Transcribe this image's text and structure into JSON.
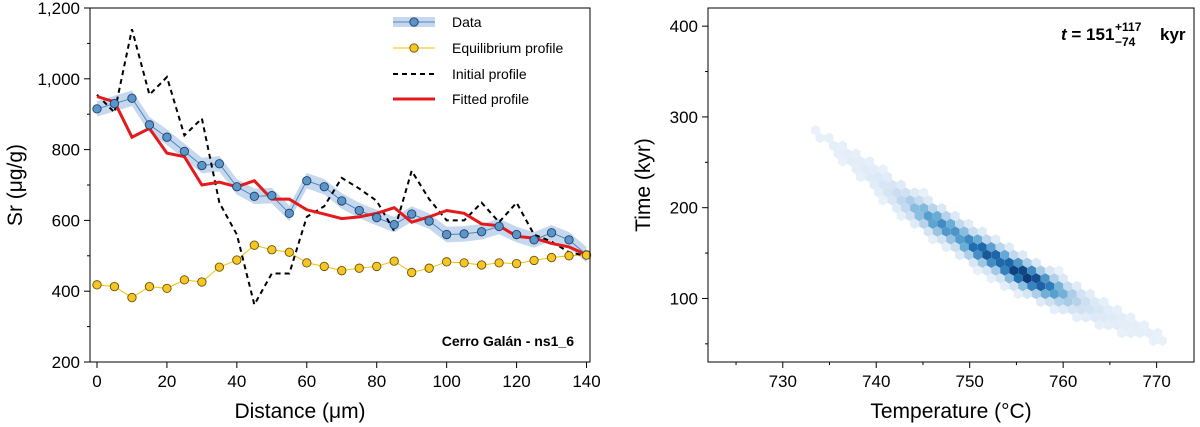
{
  "chart_data": [
    {
      "type": "line",
      "xlabel": "Distance (μm)",
      "ylabel": "Sr (μg/g)",
      "xlim": [
        -2,
        141
      ],
      "ylim": [
        200,
        1200
      ],
      "xticks": [
        0,
        20,
        40,
        60,
        80,
        100,
        120,
        140
      ],
      "xtick_labels": [
        "0",
        "20",
        "40",
        "60",
        "80",
        "100",
        "120",
        "140"
      ],
      "yticks": [
        200,
        400,
        600,
        800,
        1000,
        1200
      ],
      "ytick_labels": [
        "200",
        "400",
        "600",
        "800",
        "1,000",
        "1,200"
      ],
      "annotation": "Cerro Galán - ns1_6",
      "legend_position": "top-right",
      "grid": false,
      "series": [
        {
          "name": "Data",
          "color": "#4f87bf",
          "band_color": "#c6d8ee",
          "x": [
            0,
            5,
            10,
            15,
            20,
            25,
            30,
            35,
            40,
            45,
            50,
            55,
            60,
            65,
            70,
            75,
            80,
            85,
            90,
            95,
            100,
            105,
            110,
            115,
            120,
            125,
            130,
            135,
            140
          ],
          "y": [
            915,
            930,
            945,
            870,
            835,
            795,
            755,
            760,
            695,
            668,
            670,
            620,
            712,
            695,
            655,
            628,
            608,
            588,
            618,
            598,
            560,
            562,
            568,
            583,
            560,
            545,
            565,
            545,
            503
          ],
          "band": 22
        },
        {
          "name": "Equilibrium profile",
          "color": "#f2c100",
          "x": [
            0,
            5,
            10,
            15,
            20,
            25,
            30,
            35,
            40,
            45,
            50,
            55,
            60,
            65,
            70,
            75,
            80,
            85,
            90,
            95,
            100,
            105,
            110,
            115,
            120,
            125,
            130,
            135,
            140
          ],
          "y": [
            418,
            413,
            382,
            413,
            408,
            432,
            426,
            468,
            488,
            530,
            517,
            510,
            480,
            470,
            458,
            465,
            470,
            485,
            453,
            465,
            483,
            480,
            474,
            480,
            478,
            487,
            495,
            500,
            502
          ]
        },
        {
          "name": "Initial profile",
          "color": "#000000",
          "x": [
            0,
            5,
            10,
            15,
            20,
            25,
            30,
            35,
            40,
            45,
            50,
            55,
            60,
            65,
            70,
            75,
            80,
            85,
            90,
            95,
            100,
            105,
            110,
            115,
            120,
            125,
            130,
            135,
            140
          ],
          "y": [
            955,
            905,
            1140,
            955,
            1005,
            840,
            888,
            650,
            560,
            362,
            450,
            450,
            610,
            640,
            720,
            690,
            655,
            570,
            740,
            660,
            600,
            600,
            650,
            595,
            650,
            560,
            540,
            510,
            500
          ]
        },
        {
          "name": "Fitted profile",
          "color": "#e41a1c",
          "x": [
            0,
            5,
            10,
            15,
            20,
            25,
            30,
            35,
            40,
            45,
            50,
            55,
            60,
            65,
            70,
            75,
            80,
            85,
            90,
            95,
            100,
            105,
            110,
            115,
            120,
            125,
            130,
            135,
            140
          ],
          "y": [
            950,
            935,
            835,
            860,
            790,
            780,
            700,
            708,
            695,
            712,
            660,
            660,
            630,
            618,
            605,
            610,
            620,
            636,
            595,
            610,
            628,
            620,
            590,
            585,
            555,
            550,
            535,
            525,
            503
          ]
        }
      ]
    },
    {
      "type": "heatmap",
      "subtype": "hexbin",
      "xlabel": "Temperature (°C)",
      "ylabel": "Time (kyr)",
      "xlim": [
        722,
        774
      ],
      "ylim": [
        30,
        420
      ],
      "xticks": [
        730,
        740,
        750,
        760,
        770
      ],
      "xtick_labels": [
        "730",
        "740",
        "750",
        "760",
        "770"
      ],
      "yticks": [
        100,
        200,
        300,
        400
      ],
      "ytick_labels": [
        "100",
        "200",
        "300",
        "400"
      ],
      "colormap": "Blues",
      "grid": false,
      "annotation": {
        "lead": "t",
        "eq": " = ",
        "value": "151",
        "sup": "+117",
        "sub": "−74",
        "unit": "kyr"
      },
      "ridge": {
        "t_at_725": 360,
        "t_at_770": 58,
        "curvature": 0.06
      },
      "peaks": [
        {
          "temperature": 755,
          "time": 118,
          "weight": 1.0
        },
        {
          "temperature": 751,
          "time": 140,
          "weight": 0.85
        },
        {
          "temperature": 746,
          "time": 172,
          "weight": 0.6
        }
      ]
    }
  ]
}
